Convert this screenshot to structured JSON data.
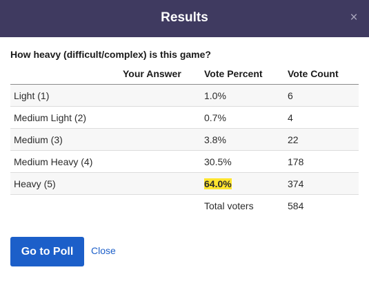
{
  "dialog": {
    "title": "Results",
    "close_glyph": "×"
  },
  "question": "How heavy (difficult/complex) is this game?",
  "table": {
    "headers": [
      "",
      "Your Answer",
      "Vote Percent",
      "Vote Count"
    ],
    "rows": [
      {
        "label": "Light (1)",
        "your_answer": "",
        "percent": "1.0%",
        "count": "6",
        "highlight": false
      },
      {
        "label": "Medium Light (2)",
        "your_answer": "",
        "percent": "0.7%",
        "count": "4",
        "highlight": false
      },
      {
        "label": "Medium (3)",
        "your_answer": "",
        "percent": "3.8%",
        "count": "22",
        "highlight": false
      },
      {
        "label": "Medium Heavy (4)",
        "your_answer": "",
        "percent": "30.5%",
        "count": "178",
        "highlight": false
      },
      {
        "label": "Heavy (5)",
        "your_answer": "",
        "percent": "64.0%",
        "count": "374",
        "highlight": true
      }
    ],
    "total_label": "Total voters",
    "total_count": "584"
  },
  "actions": {
    "go_to_poll_label": "Go to Poll",
    "close_label": "Close"
  },
  "colors": {
    "header_bg": "#3f3a60",
    "primary": "#1c5fc9",
    "highlight": "#ffe52e"
  }
}
